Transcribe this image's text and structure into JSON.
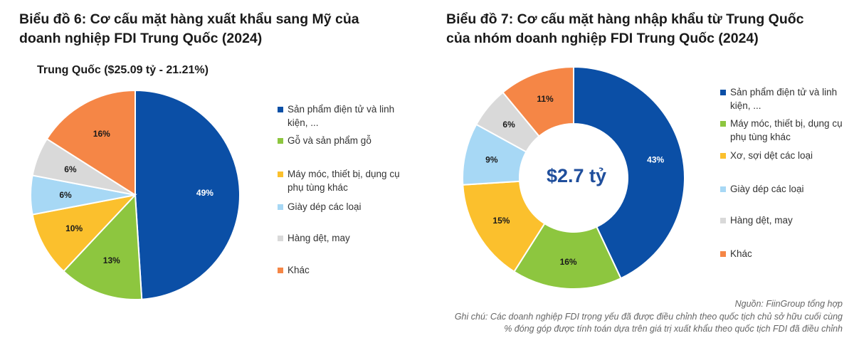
{
  "chart1": {
    "title_line1": "Biểu đồ 6: Cơ cấu mặt hàng xuất khẩu sang Mỹ của",
    "title_line2": "doanh nghiệp FDI Trung Quốc (2024)",
    "subtitle": "Trung Quốc ($25.09 tỷ - 21.21%)"
  },
  "chart2": {
    "title_line1": "Biểu đồ 7: Cơ cấu mặt hàng nhập khẩu từ Trung Quốc",
    "title_line2": "của nhóm doanh nghiệp FDI Trung Quốc (2024)",
    "center_label": "$2.7 tỷ"
  },
  "chart_data": [
    {
      "type": "pie",
      "title": "Biểu đồ 6: Cơ cấu mặt hàng xuất khẩu sang Mỹ của doanh nghiệp FDI Trung Quốc (2024)",
      "subtitle": "Trung Quốc ($25.09 tỷ - 21.21%)",
      "legend_position": "right",
      "slices": [
        {
          "label": "Sản phẩm điện tử và linh kiện, ...",
          "value": 49,
          "display": "49%",
          "color": "#0b4fa6"
        },
        {
          "label": "Gỗ và sản phẩm gỗ",
          "value": 13,
          "display": "13%",
          "color": "#8dc63f"
        },
        {
          "label": "Máy móc, thiết bị, dụng cụ phụ tùng khác",
          "value": 10,
          "display": "10%",
          "color": "#fbc02d"
        },
        {
          "label": "Giày dép các loại",
          "value": 6,
          "display": "6%",
          "color": "#a7d8f5"
        },
        {
          "label": "Hàng dệt, may",
          "value": 6,
          "display": "6%",
          "color": "#d9d9d9"
        },
        {
          "label": "Khác",
          "value": 16,
          "display": "16%",
          "color": "#f58646"
        }
      ]
    },
    {
      "type": "pie",
      "donut": true,
      "title": "Biểu đồ 7: Cơ cấu mặt hàng nhập khẩu từ Trung Quốc của nhóm doanh nghiệp FDI Trung Quốc (2024)",
      "center_label": "$2.7 tỷ",
      "legend_position": "right",
      "slices": [
        {
          "label": "Sản phẩm điện tử và linh kiện, ...",
          "value": 43,
          "display": "43%",
          "color": "#0b4fa6"
        },
        {
          "label": "Máy móc, thiết bị, dụng cụ phụ tùng khác",
          "value": 16,
          "display": "16%",
          "color": "#8dc63f"
        },
        {
          "label": "Xơ, sợi dệt các loại",
          "value": 15,
          "display": "15%",
          "color": "#fbc02d"
        },
        {
          "label": "Giày dép các loại",
          "value": 9,
          "display": "9%",
          "color": "#a7d8f5"
        },
        {
          "label": "Hàng dệt, may",
          "value": 6,
          "display": "6%",
          "color": "#d9d9d9"
        },
        {
          "label": "Khác",
          "value": 11,
          "display": "11%",
          "color": "#f58646"
        }
      ]
    }
  ],
  "legend1": [
    {
      "label": "Sản phẩm điện tử và linh kiện, ...",
      "color": "#0b4fa6"
    },
    {
      "label": "Gỗ và sản phẩm gỗ",
      "color": "#8dc63f"
    },
    {
      "label": "Máy móc, thiết bị, dụng cụ phụ tùng khác",
      "color": "#fbc02d"
    },
    {
      "label": "Giày dép các loại",
      "color": "#a7d8f5"
    },
    {
      "label": "Hàng dệt, may",
      "color": "#d9d9d9"
    },
    {
      "label": "Khác",
      "color": "#f58646"
    }
  ],
  "legend2": [
    {
      "label": "Sản phẩm điện tử và linh kiện, ...",
      "color": "#0b4fa6"
    },
    {
      "label": "Máy móc, thiết bị, dụng cụ phụ tùng khác",
      "color": "#8dc63f"
    },
    {
      "label": "Xơ, sợi dệt các loại",
      "color": "#fbc02d"
    },
    {
      "label": "Giày dép các loại",
      "color": "#a7d8f5"
    },
    {
      "label": "Hàng dệt, may",
      "color": "#d9d9d9"
    },
    {
      "label": "Khác",
      "color": "#f58646"
    }
  ],
  "footer": {
    "source": "Nguồn: FiinGroup tổng hợp",
    "note_line1": "Ghi chú: Các doanh nghiệp FDI trọng yếu đã được điều chỉnh theo quốc tịch chủ sở hữu cuối cùng",
    "note_line2": "% đóng góp được tính toán dựa trên giá trị xuất khẩu theo quốc tịch FDI đã điều chỉnh"
  }
}
